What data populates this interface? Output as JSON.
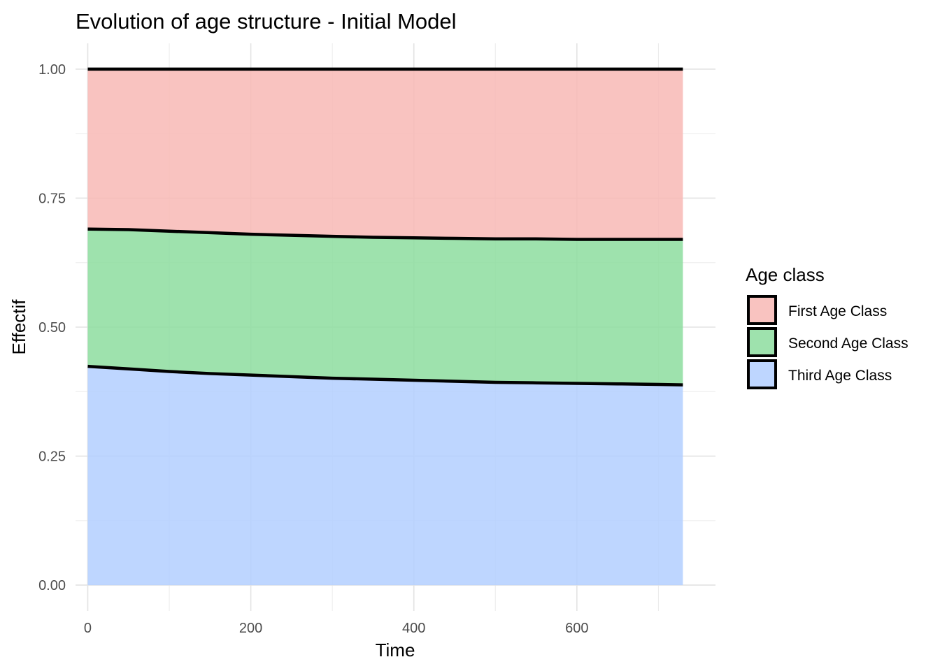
{
  "chart_data": {
    "type": "area",
    "stacked": true,
    "title": "Evolution of age structure - Initial Model",
    "xlabel": "Time",
    "ylabel": "Effectif",
    "xlim": [
      -15,
      770
    ],
    "ylim": [
      -0.05,
      1.05
    ],
    "x_ticks": [
      0,
      200,
      400,
      600
    ],
    "x_tick_labels": [
      "0",
      "200",
      "400",
      "600"
    ],
    "y_ticks": [
      0,
      0.25,
      0.5,
      0.75,
      1.0
    ],
    "y_tick_labels": [
      "0.00",
      "0.25",
      "0.50",
      "0.75",
      "1.00"
    ],
    "grid": true,
    "legend": {
      "title": "Age class",
      "position": "right",
      "entries": [
        "First Age Class",
        "Second Age Class",
        "Third Age Class"
      ]
    },
    "x": [
      0,
      50,
      100,
      150,
      200,
      250,
      300,
      350,
      400,
      450,
      500,
      550,
      600,
      650,
      700,
      730
    ],
    "series": [
      {
        "name": "Third Age Class",
        "color": "#b3cfff",
        "values": [
          0.424,
          0.419,
          0.414,
          0.41,
          0.407,
          0.404,
          0.401,
          0.399,
          0.397,
          0.395,
          0.393,
          0.392,
          0.391,
          0.39,
          0.389,
          0.388
        ]
      },
      {
        "name": "Second Age Class",
        "color": "#8ddd9f",
        "values": [
          0.266,
          0.27,
          0.272,
          0.273,
          0.273,
          0.274,
          0.275,
          0.275,
          0.276,
          0.277,
          0.278,
          0.279,
          0.279,
          0.28,
          0.281,
          0.282
        ]
      },
      {
        "name": "First Age Class",
        "color": "#f8b9b5",
        "values": [
          0.31,
          0.311,
          0.314,
          0.317,
          0.32,
          0.322,
          0.324,
          0.326,
          0.327,
          0.328,
          0.329,
          0.329,
          0.33,
          0.33,
          0.33,
          0.33
        ]
      }
    ]
  }
}
